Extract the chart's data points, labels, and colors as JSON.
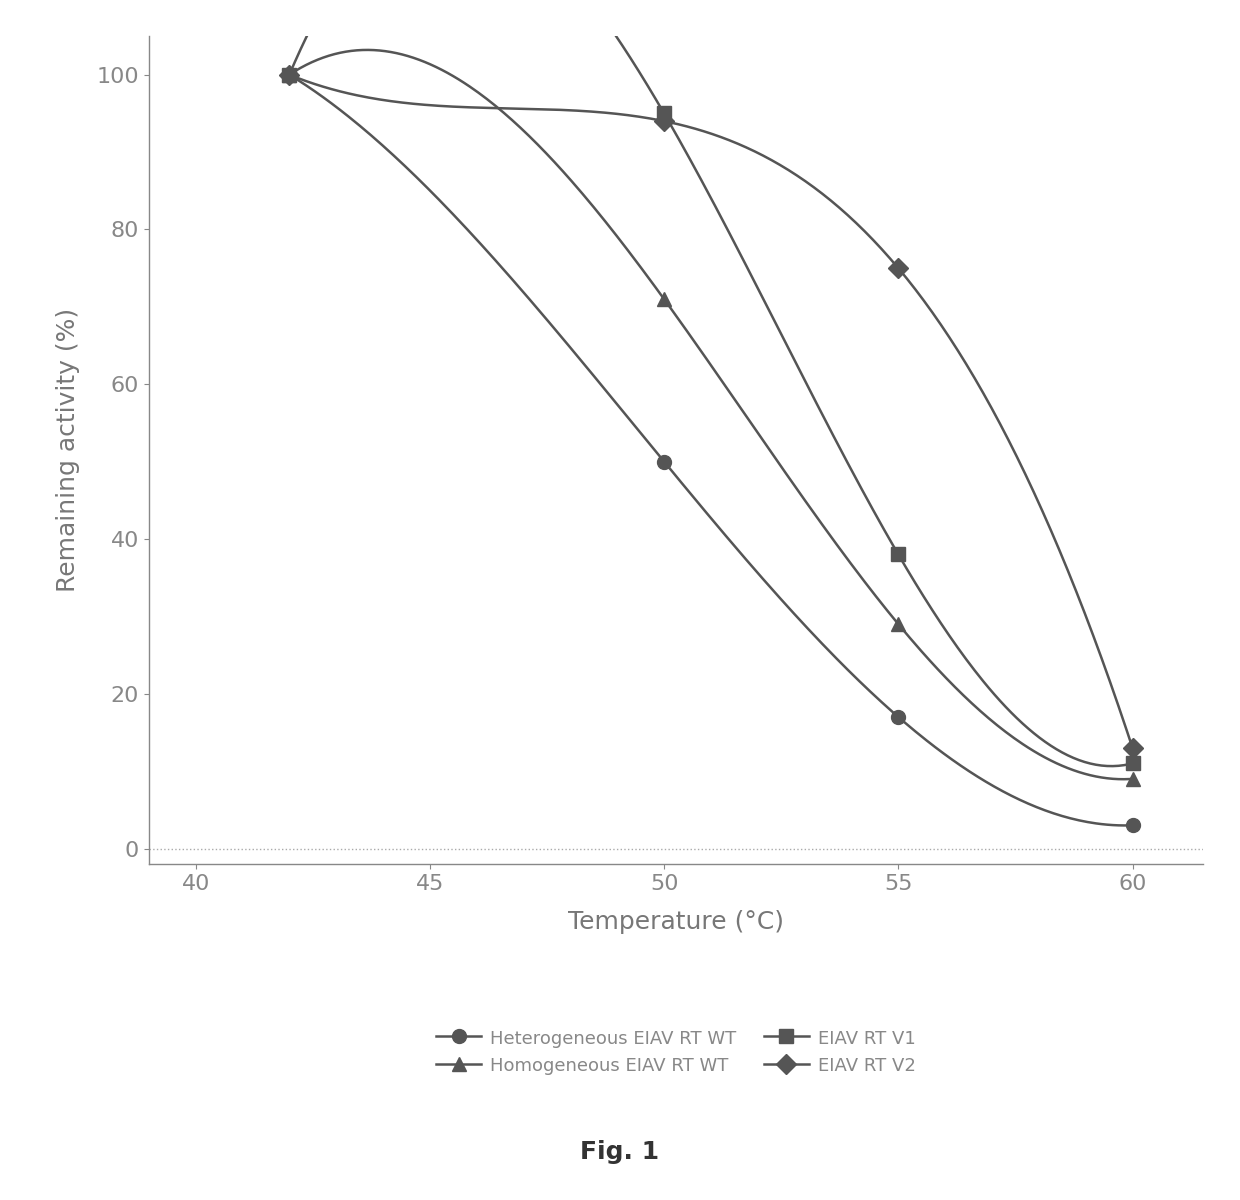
{
  "series": {
    "Heterogeneous EIAV RT WT": {
      "x": [
        42,
        50,
        55,
        60
      ],
      "y": [
        100,
        50,
        17,
        3
      ],
      "color": "#555555",
      "marker": "o",
      "markersize": 10,
      "linewidth": 1.8
    },
    "Homogeneous EIAV RT WT": {
      "x": [
        42,
        50,
        55,
        60
      ],
      "y": [
        100,
        71,
        29,
        9
      ],
      "color": "#555555",
      "marker": "^",
      "markersize": 10,
      "linewidth": 1.8
    },
    "EIAV RT V1": {
      "x": [
        42,
        50,
        55,
        60
      ],
      "y": [
        100,
        95,
        38,
        11
      ],
      "color": "#555555",
      "marker": "s",
      "markersize": 10,
      "linewidth": 1.8
    },
    "EIAV RT V2": {
      "x": [
        42,
        50,
        55,
        60
      ],
      "y": [
        100,
        94,
        75,
        13
      ],
      "color": "#555555",
      "marker": "D",
      "markersize": 10,
      "linewidth": 1.8
    }
  },
  "xlabel": "Temperature (°C)",
  "ylabel": "Remaining activity (%)",
  "xlim": [
    39,
    61.5
  ],
  "ylim": [
    -2,
    105
  ],
  "xticks": [
    40,
    45,
    50,
    55,
    60
  ],
  "yticks": [
    0,
    20,
    40,
    60,
    80,
    100
  ],
  "grid_y0_dotted": true,
  "fig_title": "Fig. 1",
  "background_color": "#ffffff",
  "axis_color": "#888888",
  "tick_color": "#888888",
  "label_fontsize": 18,
  "tick_fontsize": 16,
  "legend_fontsize": 13,
  "fig_title_fontsize": 18
}
